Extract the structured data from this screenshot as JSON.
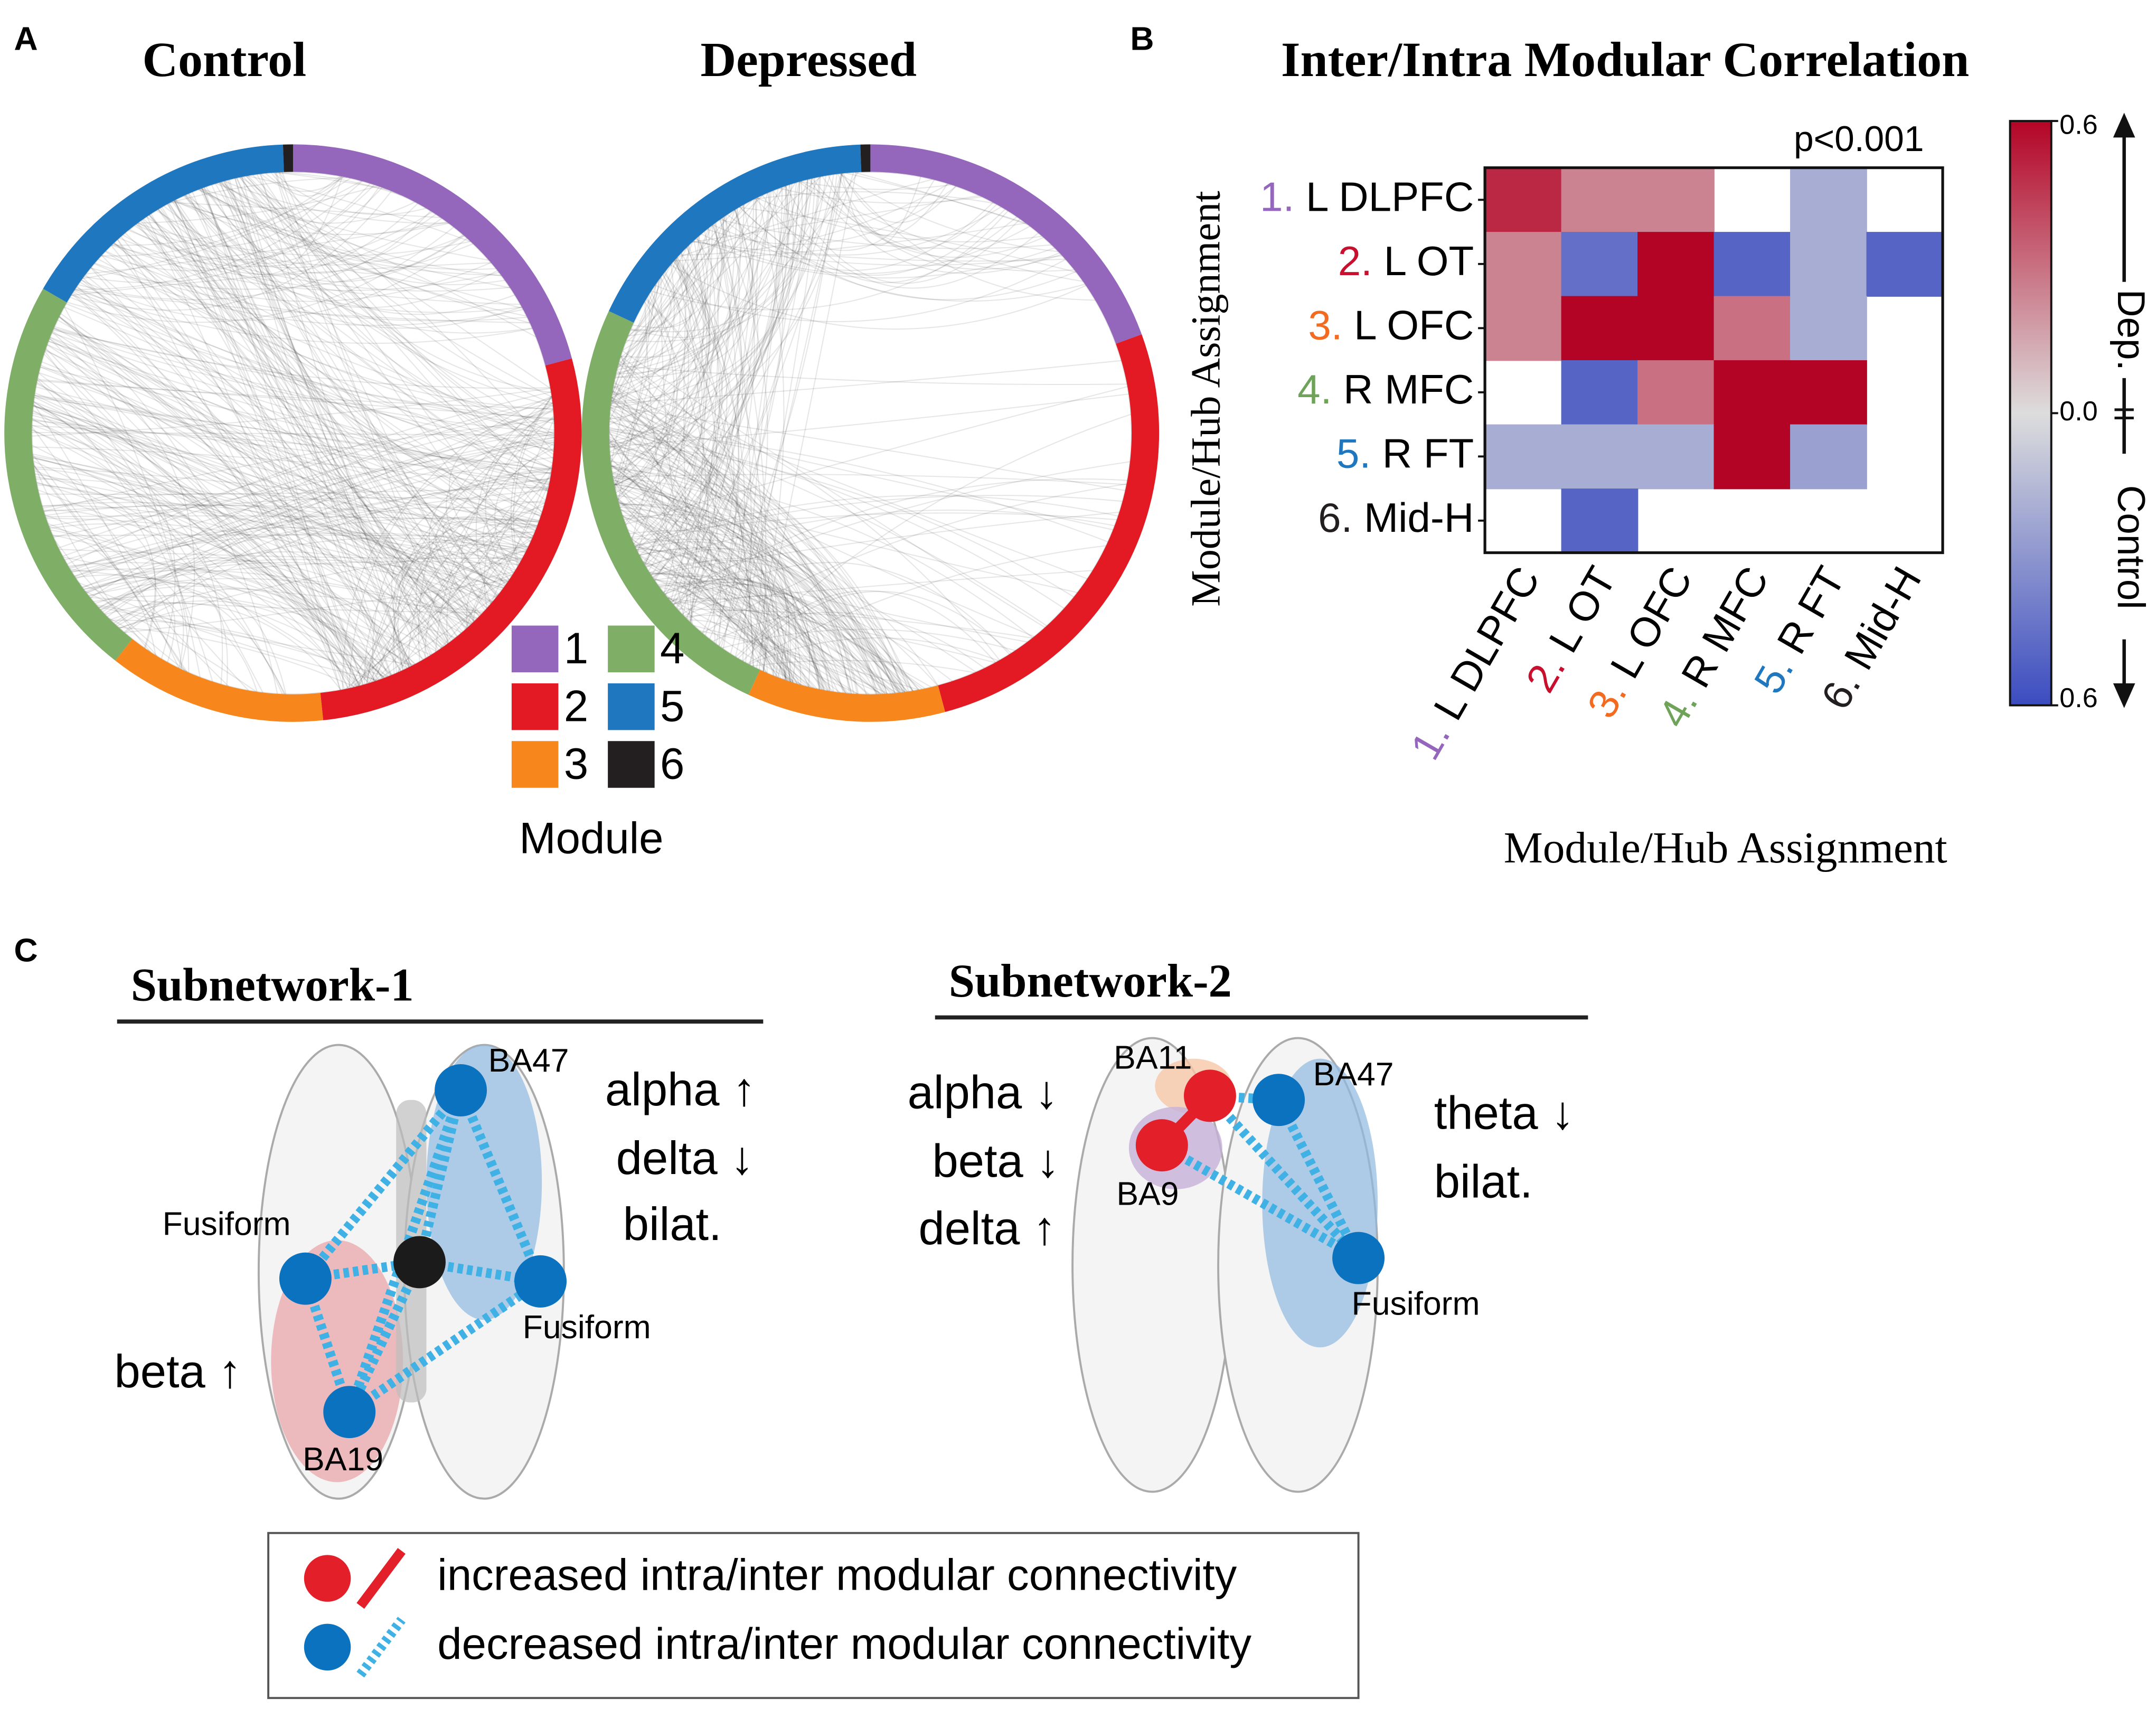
{
  "panel_a": {
    "letter": "A",
    "titles": [
      "Control",
      "Depressed"
    ],
    "legend": {
      "items": [
        "1",
        "2",
        "3",
        "4",
        "5",
        "6"
      ],
      "colors": [
        "#9467bd",
        "#e31a23",
        "#f7861c",
        "#7fae66",
        "#1f77c0",
        "#231f20"
      ],
      "title": "Module"
    }
  },
  "panel_b": {
    "letter": "B",
    "title": "Inter/Intra Modular Correlation",
    "annotation": "p<0.001",
    "labels": [
      {
        "number": "1.",
        "name": "L DLPFC",
        "color": "#9467bd"
      },
      {
        "number": "2.",
        "name": "L OT",
        "color": "#c8102e"
      },
      {
        "number": "3.",
        "name": "L OFC",
        "color": "#f26b21"
      },
      {
        "number": "4.",
        "name": "R MFC",
        "color": "#6fa35a"
      },
      {
        "number": "5.",
        "name": "R FT",
        "color": "#1f77c0"
      },
      {
        "number": "6.",
        "name": "Mid-H",
        "color": "#231f20"
      }
    ],
    "ylabel": "Module/Hub Assignment",
    "xlabel": "Module/Hub Assignment",
    "matrix": [
      [
        0.5,
        0.25,
        0.25,
        null,
        -0.2,
        null
      ],
      [
        0.25,
        -0.45,
        0.6,
        -0.5,
        -0.2,
        -0.5
      ],
      [
        0.25,
        0.6,
        0.6,
        0.3,
        -0.2,
        null
      ],
      [
        null,
        -0.5,
        0.3,
        0.6,
        0.6,
        null
      ],
      [
        -0.2,
        -0.2,
        -0.2,
        0.6,
        -0.25,
        null
      ],
      [
        null,
        -0.5,
        null,
        null,
        null,
        null
      ]
    ],
    "clim": [
      -0.6,
      0.6
    ],
    "cticks": [
      0.6,
      {
        "value": 0,
        "label": "0.0"
      },
      {
        "value": -0.6,
        "label": "0.6"
      }
    ],
    "colorbar_labels": [
      "Dep.",
      "Control"
    ]
  },
  "panel_c": {
    "letter": "C",
    "subnetwork_1": {
      "title": "Subnetwork-1",
      "nodes": [
        "BA47",
        "Fusiform",
        "Fusiform",
        "BA19"
      ],
      "bands": [
        "alpha ↑",
        "delta ↓",
        "bilat.",
        "beta ↑"
      ]
    },
    "subnetwork_2": {
      "title": "Subnetwork-2",
      "nodes": [
        "BA11",
        "BA9",
        "BA47",
        "Fusiform"
      ],
      "bands": [
        "alpha ↓",
        "beta ↓",
        "delta ↑",
        "theta ↓",
        "bilat."
      ]
    },
    "legend": [
      "increased intra/inter modular connectivity",
      "decreased intra/inter modular connectivity"
    ]
  }
}
